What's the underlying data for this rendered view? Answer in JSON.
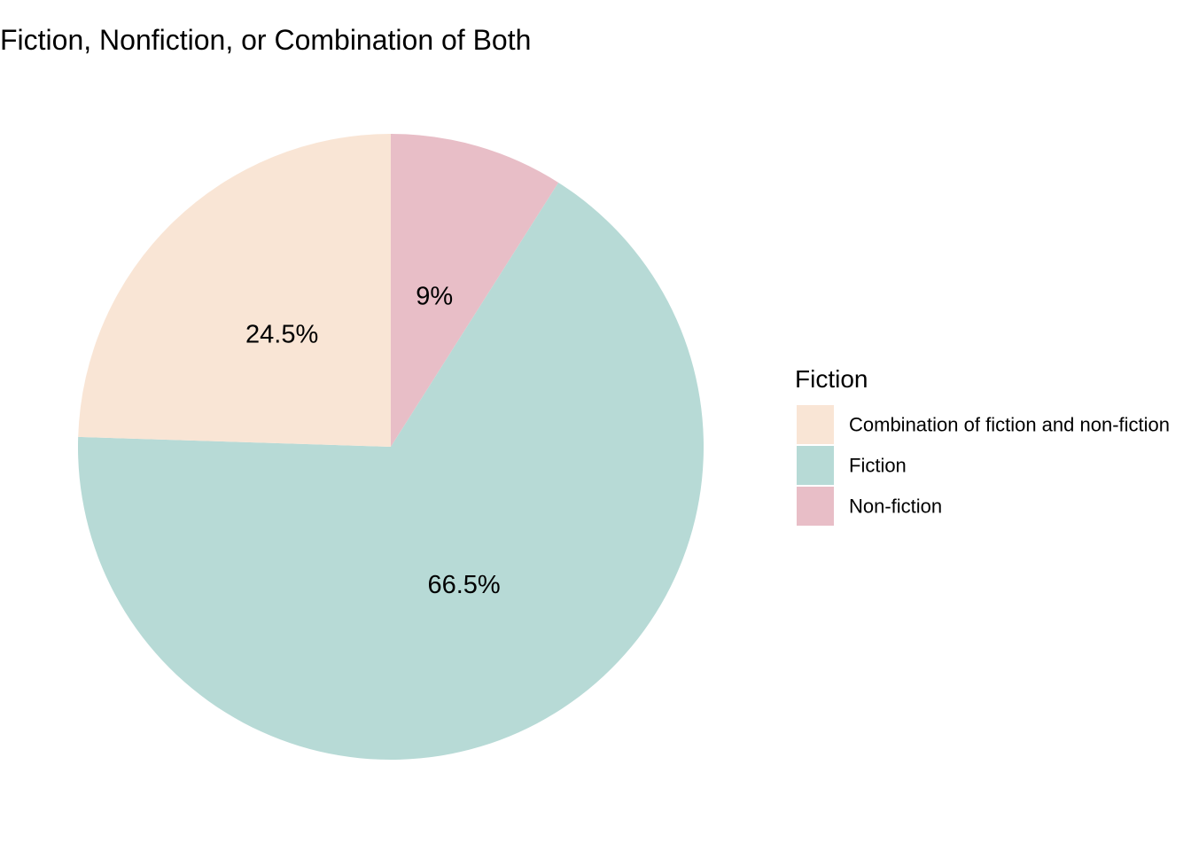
{
  "chart_data": {
    "type": "pie",
    "title": "Fiction, Nonfiction, or Combination of Both",
    "legend_title": "Fiction",
    "legend_position": "right",
    "start": "top",
    "direction": "clockwise",
    "slices": [
      {
        "name": "Non-fiction",
        "value": 9.0,
        "label": "9%",
        "color": "#E8BEC7"
      },
      {
        "name": "Fiction",
        "value": 66.5,
        "label": "66.5%",
        "color": "#B7DAD6"
      },
      {
        "name": "Combination of fiction and non-fiction",
        "value": 24.5,
        "label": "24.5%",
        "color": "#F9E5D5"
      }
    ],
    "legend_order": [
      "Combination of fiction and non-fiction",
      "Fiction",
      "Non-fiction"
    ]
  }
}
